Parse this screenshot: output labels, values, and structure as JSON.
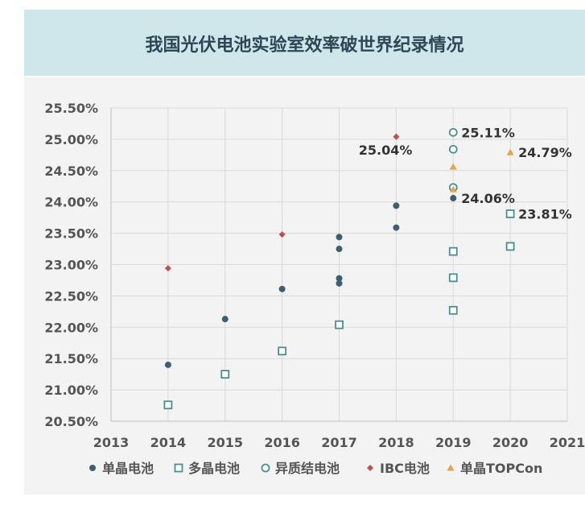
{
  "chart_data": {
    "type": "scatter",
    "title": "我国光伏电池实验室效率破世界纪录情况",
    "xlabel": "",
    "ylabel": "",
    "xlim": [
      2013,
      2021
    ],
    "ylim": [
      20.5,
      25.5
    ],
    "x_ticks": [
      "2013",
      "2014",
      "2015",
      "2016",
      "2017",
      "2018",
      "2019",
      "2020",
      "2021"
    ],
    "y_ticks": [
      "20.50%",
      "21.00%",
      "21.50%",
      "22.00%",
      "22.50%",
      "23.00%",
      "23.50%",
      "24.00%",
      "24.50%",
      "25.00%",
      "25.50%"
    ],
    "grid": true,
    "legend_position": "bottom",
    "series": [
      {
        "name": "单晶电池",
        "marker": "dot",
        "color": "#3d5f72",
        "points": [
          [
            2014,
            21.4
          ],
          [
            2015,
            22.13
          ],
          [
            2016,
            22.61
          ],
          [
            2017,
            23.44
          ],
          [
            2017,
            23.25
          ],
          [
            2017,
            22.78
          ],
          [
            2017,
            22.7
          ],
          [
            2018,
            23.94
          ],
          [
            2018,
            23.59
          ],
          [
            2019,
            24.06
          ]
        ]
      },
      {
        "name": "多晶电池",
        "marker": "square",
        "color": "#4a8f8f",
        "points": [
          [
            2014,
            20.76
          ],
          [
            2015,
            21.25
          ],
          [
            2016,
            21.62
          ],
          [
            2017,
            22.04
          ],
          [
            2019,
            23.21
          ],
          [
            2019,
            22.79
          ],
          [
            2019,
            22.27
          ],
          [
            2020,
            23.81
          ],
          [
            2020,
            23.29
          ]
        ]
      },
      {
        "name": "异质结电池",
        "marker": "circle",
        "color": "#4a8f8f",
        "points": [
          [
            2019,
            25.11
          ],
          [
            2019,
            24.84
          ],
          [
            2019,
            24.23
          ]
        ]
      },
      {
        "name": "IBC电池",
        "marker": "diamond",
        "color": "#c0504d",
        "points": [
          [
            2014,
            22.94
          ],
          [
            2016,
            23.48
          ],
          [
            2018,
            25.04
          ]
        ]
      },
      {
        "name": "单晶TOPCon",
        "marker": "triangle",
        "color": "#e3a64a",
        "points": [
          [
            2019,
            24.56
          ],
          [
            2019,
            24.2
          ],
          [
            2020,
            24.79
          ]
        ]
      }
    ],
    "annotations": [
      {
        "text": "25.11%",
        "x": 2019,
        "y": 25.11,
        "side": "right"
      },
      {
        "text": "25.04%",
        "x": 2018,
        "y": 25.04,
        "side": "below-left"
      },
      {
        "text": "24.79%",
        "x": 2020,
        "y": 24.79,
        "side": "right"
      },
      {
        "text": "24.06%",
        "x": 2019,
        "y": 24.06,
        "side": "right"
      },
      {
        "text": "23.81%",
        "x": 2020,
        "y": 23.81,
        "side": "right"
      }
    ]
  }
}
